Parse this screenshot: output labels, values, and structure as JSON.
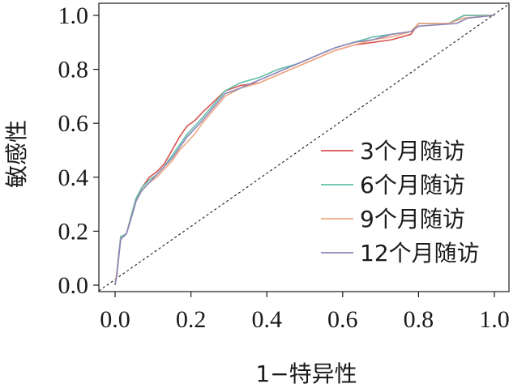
{
  "chart_data": {
    "type": "line",
    "xlabel": "1−特异性",
    "ylabel": "敏感性",
    "xlim": [
      0,
      1
    ],
    "ylim": [
      0,
      1
    ],
    "x_ticks": [
      "0.0",
      "0.2",
      "0.4",
      "0.6",
      "0.8",
      "1.0"
    ],
    "y_ticks": [
      "0.0",
      "0.2",
      "0.4",
      "0.6",
      "0.8",
      "1.0"
    ],
    "legend_position": "center-right",
    "reference_line": {
      "style": "dashed",
      "points": [
        [
          0,
          0
        ],
        [
          1,
          1
        ]
      ]
    },
    "series": [
      {
        "name": "3个月随访",
        "color": "#d9534f",
        "points": [
          [
            0,
            0
          ],
          [
            0.005,
            0.05
          ],
          [
            0.01,
            0.12
          ],
          [
            0.015,
            0.18
          ],
          [
            0.03,
            0.19
          ],
          [
            0.045,
            0.27
          ],
          [
            0.055,
            0.32
          ],
          [
            0.07,
            0.36
          ],
          [
            0.09,
            0.4
          ],
          [
            0.11,
            0.42
          ],
          [
            0.13,
            0.45
          ],
          [
            0.15,
            0.5
          ],
          [
            0.17,
            0.55
          ],
          [
            0.19,
            0.59
          ],
          [
            0.21,
            0.61
          ],
          [
            0.23,
            0.64
          ],
          [
            0.26,
            0.68
          ],
          [
            0.29,
            0.72
          ],
          [
            0.33,
            0.74
          ],
          [
            0.38,
            0.75
          ],
          [
            0.43,
            0.78
          ],
          [
            0.48,
            0.81
          ],
          [
            0.53,
            0.84
          ],
          [
            0.58,
            0.87
          ],
          [
            0.63,
            0.89
          ],
          [
            0.68,
            0.9
          ],
          [
            0.73,
            0.91
          ],
          [
            0.78,
            0.93
          ],
          [
            0.8,
            0.97
          ],
          [
            0.88,
            0.97
          ],
          [
            0.92,
            1.0
          ],
          [
            1.0,
            1.0
          ]
        ]
      },
      {
        "name": "6个月随访",
        "color": "#5fbfa8",
        "points": [
          [
            0,
            0
          ],
          [
            0.005,
            0.05
          ],
          [
            0.01,
            0.12
          ],
          [
            0.015,
            0.18
          ],
          [
            0.03,
            0.19
          ],
          [
            0.045,
            0.27
          ],
          [
            0.055,
            0.32
          ],
          [
            0.07,
            0.36
          ],
          [
            0.09,
            0.39
          ],
          [
            0.11,
            0.41
          ],
          [
            0.13,
            0.44
          ],
          [
            0.15,
            0.48
          ],
          [
            0.17,
            0.52
          ],
          [
            0.19,
            0.56
          ],
          [
            0.21,
            0.59
          ],
          [
            0.23,
            0.62
          ],
          [
            0.26,
            0.67
          ],
          [
            0.29,
            0.72
          ],
          [
            0.33,
            0.75
          ],
          [
            0.38,
            0.77
          ],
          [
            0.43,
            0.8
          ],
          [
            0.48,
            0.82
          ],
          [
            0.53,
            0.85
          ],
          [
            0.58,
            0.88
          ],
          [
            0.63,
            0.9
          ],
          [
            0.68,
            0.92
          ],
          [
            0.73,
            0.93
          ],
          [
            0.78,
            0.94
          ],
          [
            0.8,
            0.97
          ],
          [
            0.88,
            0.97
          ],
          [
            0.92,
            1.0
          ],
          [
            1.0,
            1.0
          ]
        ]
      },
      {
        "name": "9个月随访",
        "color": "#f0a882",
        "points": [
          [
            0,
            0
          ],
          [
            0.005,
            0.05
          ],
          [
            0.01,
            0.11
          ],
          [
            0.015,
            0.17
          ],
          [
            0.03,
            0.19
          ],
          [
            0.045,
            0.26
          ],
          [
            0.055,
            0.31
          ],
          [
            0.07,
            0.35
          ],
          [
            0.09,
            0.38
          ],
          [
            0.11,
            0.4
          ],
          [
            0.13,
            0.43
          ],
          [
            0.15,
            0.46
          ],
          [
            0.17,
            0.5
          ],
          [
            0.19,
            0.53
          ],
          [
            0.21,
            0.56
          ],
          [
            0.23,
            0.6
          ],
          [
            0.26,
            0.65
          ],
          [
            0.29,
            0.7
          ],
          [
            0.33,
            0.73
          ],
          [
            0.38,
            0.75
          ],
          [
            0.43,
            0.78
          ],
          [
            0.48,
            0.81
          ],
          [
            0.53,
            0.84
          ],
          [
            0.58,
            0.87
          ],
          [
            0.63,
            0.89
          ],
          [
            0.68,
            0.91
          ],
          [
            0.73,
            0.92
          ],
          [
            0.78,
            0.94
          ],
          [
            0.8,
            0.97
          ],
          [
            0.88,
            0.97
          ],
          [
            0.92,
            0.99
          ],
          [
            1.0,
            1.0
          ]
        ]
      },
      {
        "name": "12个月随访",
        "color": "#8c86b8",
        "points": [
          [
            0,
            0
          ],
          [
            0.005,
            0.04
          ],
          [
            0.01,
            0.11
          ],
          [
            0.015,
            0.17
          ],
          [
            0.03,
            0.19
          ],
          [
            0.045,
            0.26
          ],
          [
            0.055,
            0.31
          ],
          [
            0.07,
            0.35
          ],
          [
            0.09,
            0.38
          ],
          [
            0.11,
            0.41
          ],
          [
            0.13,
            0.44
          ],
          [
            0.15,
            0.47
          ],
          [
            0.17,
            0.51
          ],
          [
            0.19,
            0.55
          ],
          [
            0.21,
            0.58
          ],
          [
            0.23,
            0.61
          ],
          [
            0.26,
            0.66
          ],
          [
            0.29,
            0.71
          ],
          [
            0.33,
            0.73
          ],
          [
            0.38,
            0.76
          ],
          [
            0.43,
            0.79
          ],
          [
            0.48,
            0.82
          ],
          [
            0.53,
            0.85
          ],
          [
            0.58,
            0.88
          ],
          [
            0.63,
            0.9
          ],
          [
            0.68,
            0.91
          ],
          [
            0.73,
            0.93
          ],
          [
            0.78,
            0.94
          ],
          [
            0.8,
            0.96
          ],
          [
            0.9,
            0.97
          ],
          [
            0.93,
            0.99
          ],
          [
            1.0,
            1.0
          ]
        ]
      }
    ]
  }
}
